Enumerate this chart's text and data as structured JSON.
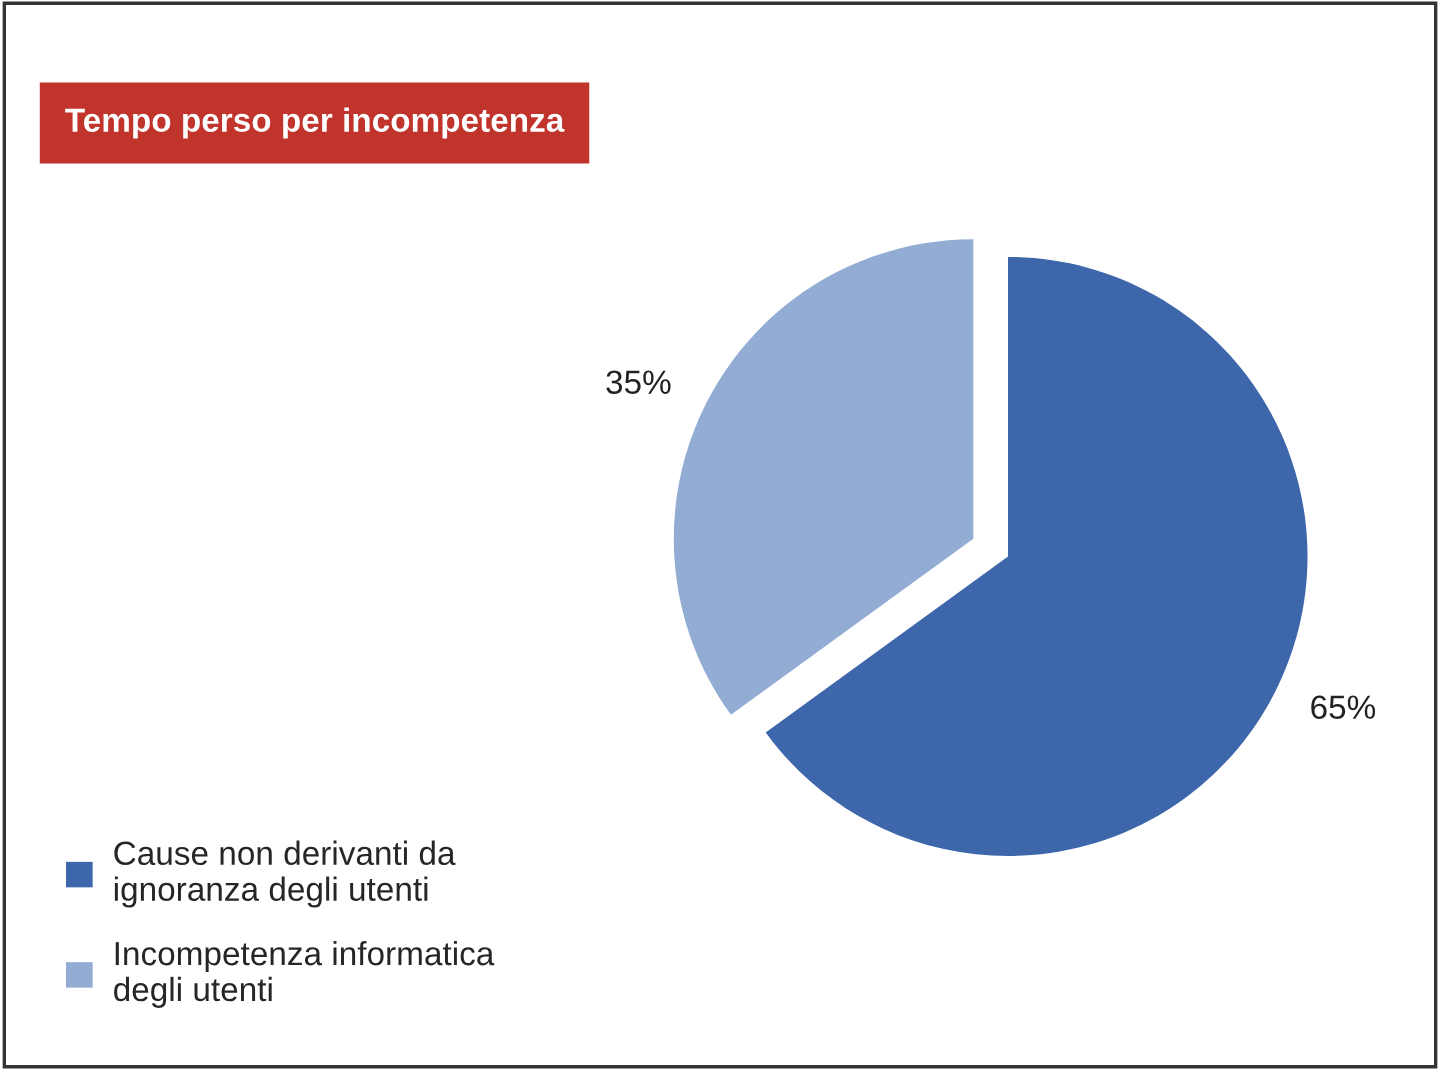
{
  "chart_data": {
    "type": "pie",
    "title": "Tempo perso per incompetenza",
    "categories": [
      "Cause non derivanti da\nignoranza degli utenti",
      "Incompetenza informatica\ndegli utenti"
    ],
    "values": [
      65,
      35
    ],
    "colors": [
      "#3d67aa",
      "#93acd4"
    ],
    "value_labels": [
      "65%",
      "35%"
    ],
    "legend": "bottom left"
  }
}
